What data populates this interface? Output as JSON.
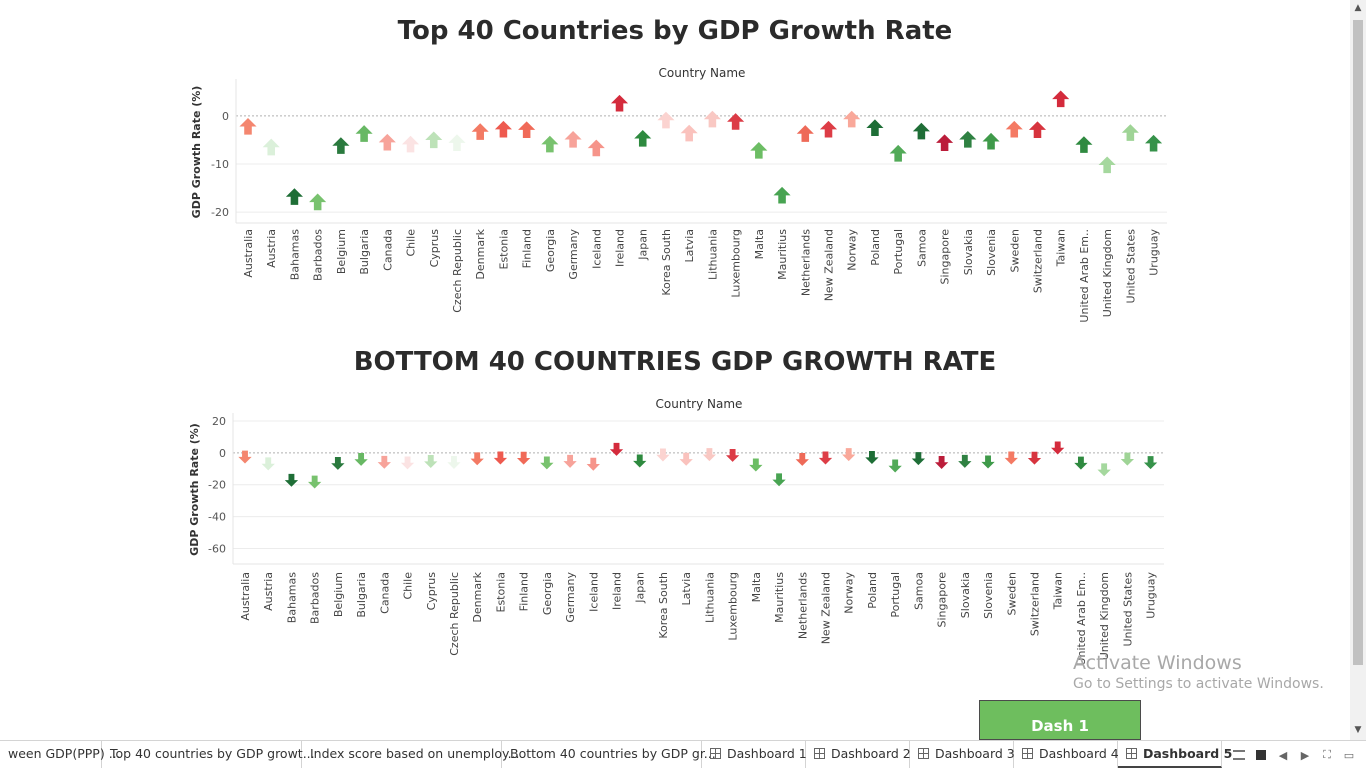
{
  "chart_data": [
    {
      "type": "scatter",
      "marker": "arrow",
      "title": "Top 40 Countries by GDP Growth Rate",
      "column_header": "Country Name",
      "ylabel": "GDP Growth Rate (%)",
      "yticks": [
        0,
        -10,
        -20
      ],
      "ylim": [
        -21,
        6
      ],
      "grid": true,
      "categories": [
        "Australia",
        "Austria",
        "Bahamas",
        "Barbados",
        "Belgium",
        "Bulgaria",
        "Canada",
        "Chile",
        "Cyprus",
        "Czech Republic",
        "Denmark",
        "Estonia",
        "Finland",
        "Georgia",
        "Germany",
        "Iceland",
        "Ireland",
        "Japan",
        "Korea South",
        "Latvia",
        "Lithuania",
        "Luxembourg",
        "Malta",
        "Mauritius",
        "Netherlands",
        "New Zealand",
        "Norway",
        "Poland",
        "Portugal",
        "Samoa",
        "Singapore",
        "Slovakia",
        "Slovenia",
        "Sweden",
        "Switzerland",
        "Taiwan",
        "United Arab Em..",
        "United Kingdom",
        "United States",
        "Uruguay"
      ],
      "values": [
        -2.3,
        -6.6,
        -16.9,
        -18.0,
        -6.3,
        -3.8,
        -5.6,
        -6.0,
        -5.1,
        -5.7,
        -3.4,
        -2.9,
        -3.0,
        -6.0,
        -5.0,
        -6.8,
        2.5,
        -4.8,
        -1.0,
        -3.7,
        -0.8,
        -1.3,
        -7.3,
        -16.6,
        -3.8,
        -2.9,
        -0.8,
        -2.6,
        -7.9,
        -3.3,
        -5.7,
        -5.0,
        -5.4,
        -2.9,
        -3.0,
        3.4,
        -6.1,
        -10.3,
        -3.6,
        -5.8
      ]
    },
    {
      "type": "scatter",
      "marker": "arrow",
      "title": "BOTTOM 40 COUNTRIES GDP GROWTH RATE",
      "column_header": "Country Name",
      "ylabel": "GDP Growth Rate (%)",
      "yticks": [
        20,
        0,
        -20,
        -40,
        -60
      ],
      "ylim": [
        -66,
        20
      ],
      "grid": true,
      "categories": [
        "Australia",
        "Austria",
        "Bahamas",
        "Barbados",
        "Belgium",
        "Bulgaria",
        "Canada",
        "Chile",
        "Cyprus",
        "Czech Republic",
        "Denmark",
        "Estonia",
        "Finland",
        "Georgia",
        "Germany",
        "Iceland",
        "Ireland",
        "Japan",
        "Korea South",
        "Latvia",
        "Lithuania",
        "Luxembourg",
        "Malta",
        "Mauritius",
        "Netherlands",
        "New Zealand",
        "Norway",
        "Poland",
        "Portugal",
        "Samoa",
        "Singapore",
        "Slovakia",
        "Slovenia",
        "Sweden",
        "Switzerland",
        "Taiwan",
        "United Arab Em..",
        "United Kingdom",
        "United States",
        "Uruguay"
      ],
      "values": [
        -2.3,
        -6.6,
        -16.9,
        -18.0,
        -6.3,
        -3.8,
        -5.6,
        -6.0,
        -5.1,
        -5.7,
        -3.4,
        -2.9,
        -3.0,
        -6.0,
        -5.0,
        -6.8,
        2.5,
        -4.8,
        -1.0,
        -3.7,
        -0.8,
        -1.3,
        -7.3,
        -16.6,
        -3.8,
        -2.9,
        -0.8,
        -2.6,
        -7.9,
        -3.3,
        -5.7,
        -5.0,
        -5.4,
        -2.9,
        -3.0,
        3.4,
        -6.1,
        -10.3,
        -3.6,
        -5.8
      ],
      "arrow_colors": [
        "#f4866f",
        "#dbf0da",
        "#1e6e36",
        "#78c26e",
        "#2a7a3e",
        "#68b864",
        "#f7a39a",
        "#fbe3e3",
        "#bde2b8",
        "#edf7ec",
        "#f37a64",
        "#ee5a4f",
        "#f06a58",
        "#78c26e",
        "#f7a39a",
        "#f6948a",
        "#d42b3c",
        "#2e8a3f",
        "#fbd3d0",
        "#fac2bd",
        "#f9c8c3",
        "#dc3b46",
        "#6cbd64",
        "#48a452",
        "#ee6a58",
        "#dd3d46",
        "#f9a89a",
        "#1e6e36",
        "#52aa58",
        "#1f6e37",
        "#bb1d3a",
        "#2f8142",
        "#3f9a4a",
        "#f47a64",
        "#d7343e",
        "#d42b3c",
        "#2f8a40",
        "#a5d89e",
        "#9fd496",
        "#36924a"
      ]
    }
  ],
  "watermark": {
    "line1": "Activate Windows",
    "line2": "Go to Settings to activate Windows."
  },
  "dash_button": "Dash 1",
  "tabs": [
    {
      "label": "ween GDP(PPP) ...",
      "icon": false
    },
    {
      "label": "Top 40 countries by GDP growt...",
      "icon": false
    },
    {
      "label": "Index score based on unemploy...",
      "icon": false
    },
    {
      "label": "Bottom 40 countries by GDP gr...",
      "icon": false
    },
    {
      "label": "Dashboard 1",
      "icon": true
    },
    {
      "label": "Dashboard 2",
      "icon": true
    },
    {
      "label": "Dashboard 3",
      "icon": true
    },
    {
      "label": "Dashboard 4",
      "icon": true
    },
    {
      "label": "Dashboard 5",
      "icon": true,
      "active": true
    }
  ],
  "tab_controls": [
    "grid-view-icon",
    "filmstrip-icon",
    "prev-icon",
    "next-icon",
    "fit-icon",
    "present-icon"
  ]
}
